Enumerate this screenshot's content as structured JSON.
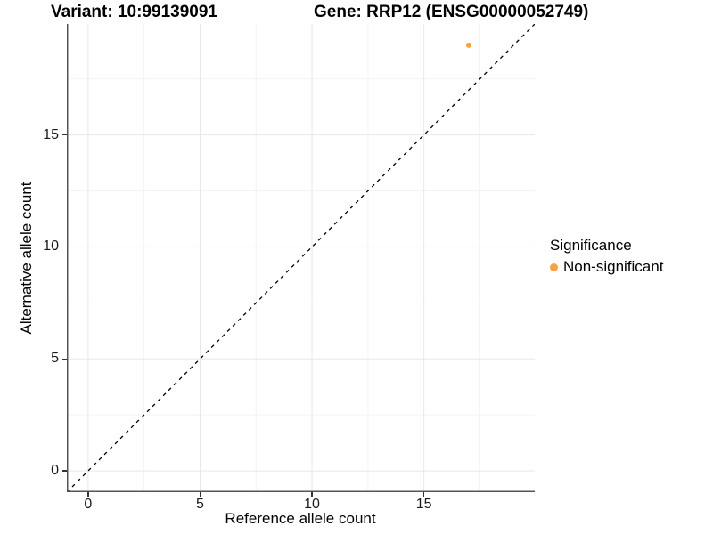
{
  "figure": {
    "title_left": "Variant: 10:99139091",
    "title_right": "Gene: RRP12 (ENSG00000052749)"
  },
  "axes": {
    "x_label": "Reference allele count",
    "y_label": "Alternative allele count"
  },
  "legend": {
    "title": "Significance",
    "items": [
      {
        "label": "Non-significant",
        "color": "#F9A242",
        "marker": "circle"
      }
    ]
  },
  "chart_data": {
    "type": "scatter",
    "title_left": "Variant: 10:99139091",
    "title_right": "Gene: RRP12 (ENSG00000052749)",
    "xlabel": "Reference allele count",
    "ylabel": "Alternative allele count",
    "xlim": [
      -0.95,
      19.95
    ],
    "ylim": [
      -0.95,
      19.95
    ],
    "x_ticks": [
      0,
      5,
      10,
      15
    ],
    "y_ticks": [
      0,
      5,
      10,
      15
    ],
    "x_minor_gridlines": [
      2.5,
      7.5,
      12.5,
      17.5
    ],
    "y_minor_gridlines": [
      2.5,
      7.5,
      12.5,
      17.5
    ],
    "grid": "on",
    "legend_position": "right",
    "series": [
      {
        "name": "Non-significant",
        "color": "#F9A242",
        "points": [
          {
            "x": 17,
            "y": 19
          }
        ]
      }
    ],
    "reference_line": {
      "equation": "y = x",
      "style": "dashed",
      "color": "#000000"
    },
    "style_colors": {
      "grid_major": "#e8e8e8",
      "grid_minor": "#f3f3f3",
      "axis_line": "#555555"
    }
  }
}
